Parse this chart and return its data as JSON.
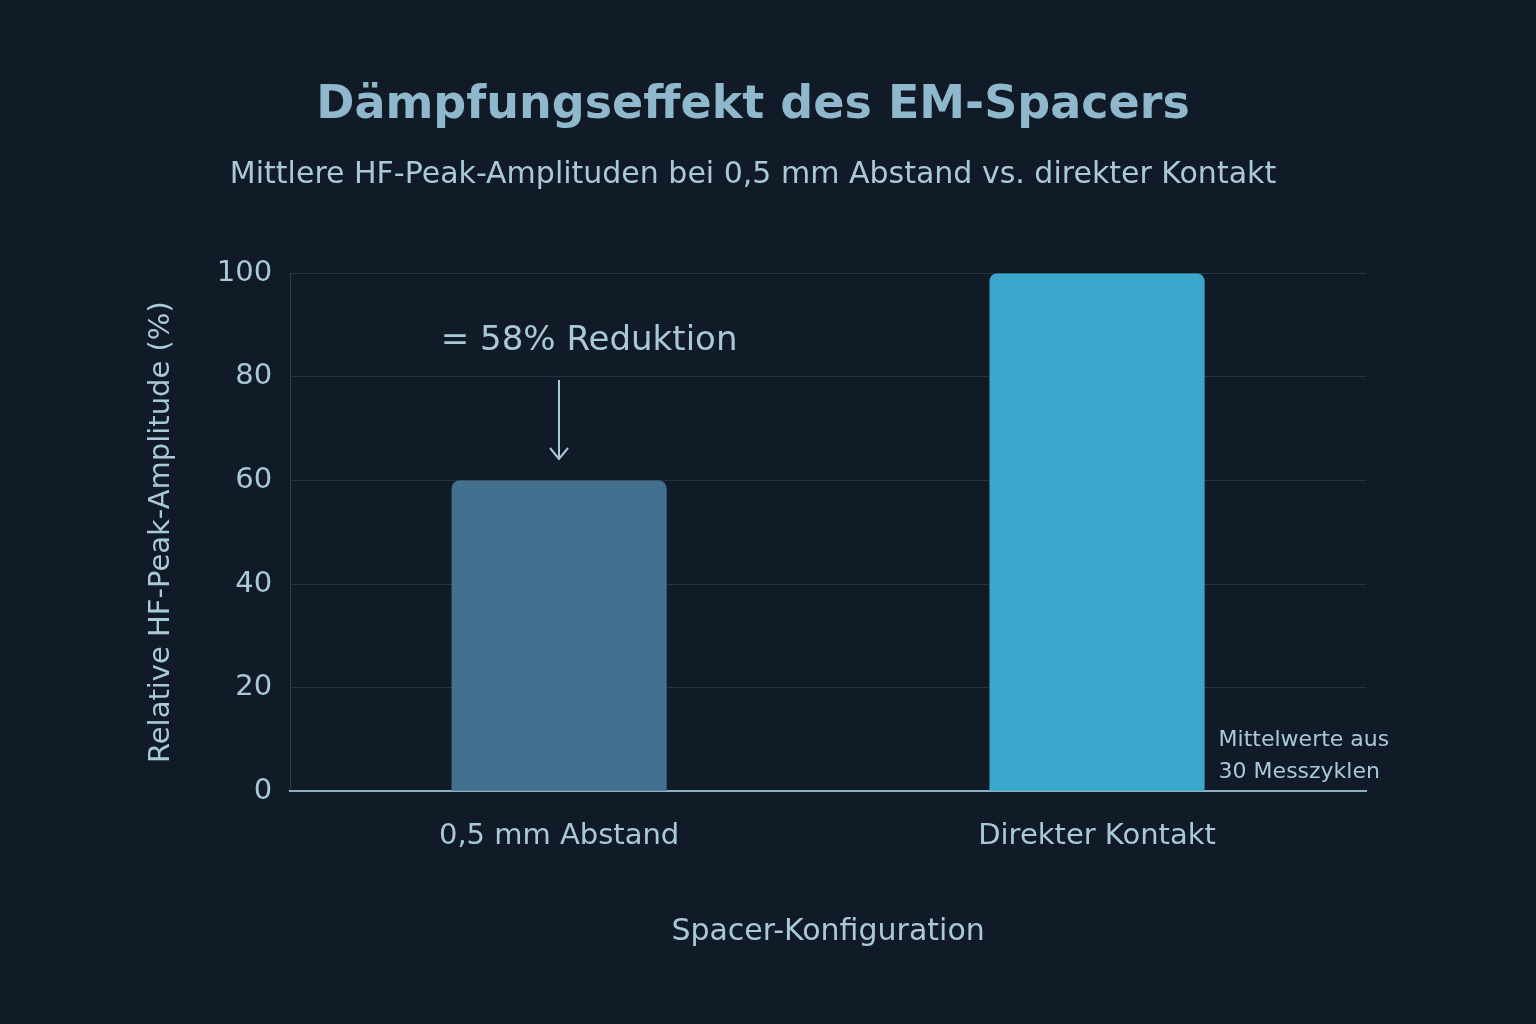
{
  "chart_data": {
    "type": "bar",
    "title": "Dämpfungseffekt des EM-Spacers",
    "subtitle": "Mittlere HF-Peak-Amplituden bei 0,5 mm Abstand vs. direkter Kontakt",
    "xlabel": "Spacer-Konfiguration",
    "ylabel": "Relative HF-Peak-Amplitude (%)",
    "categories": [
      "0,5 mm Abstand",
      "Direkter Kontakt"
    ],
    "values": [
      60,
      100
    ],
    "colors": [
      "#44708f",
      "#3aa7cc"
    ],
    "ylim": [
      0,
      100
    ],
    "yticks": [
      0,
      20,
      40,
      60,
      80,
      100
    ],
    "grid": "y",
    "legend": false,
    "annotations": [
      "= 58% Reduktion",
      "Mittelwerte aus\n30 Messzyklen"
    ]
  }
}
